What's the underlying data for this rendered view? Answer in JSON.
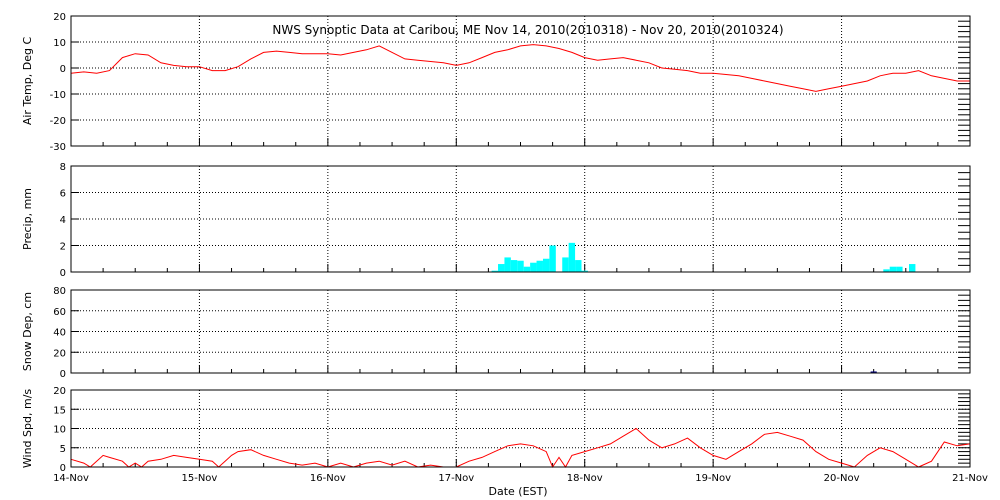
{
  "title": "NWS Synoptic Data at Caribou, ME    Nov 14, 2010(2010318) - Nov 20, 2010(2010324)",
  "x_axis": {
    "label": "Date (EST)",
    "ticks": [
      "14-Nov",
      "15-Nov",
      "16-Nov",
      "17-Nov",
      "18-Nov",
      "19-Nov",
      "20-Nov",
      "21-Nov"
    ]
  },
  "colors": {
    "temperature": "#ff0000",
    "precip": "#00ffff",
    "snow": "#000080",
    "wind": "#ff0000"
  },
  "chart_data": [
    {
      "type": "line",
      "ylabel": "Air Temp, Deg C",
      "ylim": [
        -30,
        20
      ],
      "yticks": [
        -30,
        -20,
        -10,
        0,
        10,
        20
      ],
      "x_unit": "days since 14-Nov 00:00 EST",
      "x": [
        0,
        0.1,
        0.2,
        0.3,
        0.4,
        0.5,
        0.6,
        0.7,
        0.8,
        0.9,
        1.0,
        1.1,
        1.2,
        1.3,
        1.4,
        1.5,
        1.6,
        1.7,
        1.8,
        1.9,
        2.0,
        2.1,
        2.2,
        2.3,
        2.4,
        2.5,
        2.6,
        2.7,
        2.8,
        2.9,
        3.0,
        3.1,
        3.2,
        3.3,
        3.4,
        3.5,
        3.6,
        3.7,
        3.8,
        3.9,
        4.0,
        4.1,
        4.2,
        4.3,
        4.4,
        4.5,
        4.6,
        4.7,
        4.8,
        4.9,
        5.0,
        5.1,
        5.2,
        5.3,
        5.4,
        5.5,
        5.6,
        5.7,
        5.8,
        5.9,
        6.0,
        6.1,
        6.2,
        6.3,
        6.4,
        6.5,
        6.6,
        6.7,
        6.8,
        6.9,
        7.0
      ],
      "values": [
        -2,
        -1.5,
        -2,
        -1,
        4,
        5.5,
        5,
        2,
        1,
        0.5,
        0.5,
        -1,
        -1,
        0.5,
        3.5,
        6,
        6.5,
        6,
        5.5,
        5.5,
        5.5,
        5,
        6,
        7,
        8.5,
        6,
        3.5,
        3,
        2.5,
        2,
        1,
        2,
        4,
        6,
        7,
        8.5,
        9,
        8.5,
        7.5,
        6,
        4,
        3,
        3.5,
        4,
        3,
        2,
        0,
        -0.5,
        -1,
        -2,
        -2,
        -2.5,
        -3,
        -4,
        -5,
        -6,
        -7,
        -8,
        -9,
        -8,
        -7,
        -6,
        -5,
        -3,
        -2,
        -2,
        -1,
        -3,
        -4,
        -5,
        -5
      ]
    },
    {
      "type": "bar",
      "ylabel": "Precip, mm",
      "ylim": [
        0,
        8
      ],
      "yticks": [
        0,
        2,
        4,
        6,
        8
      ],
      "x_unit": "days since 14-Nov 00:00 EST",
      "x": [
        3.3,
        3.35,
        3.4,
        3.45,
        3.5,
        3.55,
        3.6,
        3.65,
        3.7,
        3.75,
        3.85,
        3.9,
        3.95,
        4.0,
        6.35,
        6.4,
        6.45,
        6.55
      ],
      "values": [
        0.1,
        0.6,
        1.1,
        0.9,
        0.85,
        0.4,
        0.7,
        0.85,
        1.0,
        2.0,
        1.1,
        2.2,
        0.9,
        0.1,
        0.2,
        0.4,
        0.4,
        0.6
      ],
      "bar_width_days": 0.05
    },
    {
      "type": "bar",
      "ylabel": "Snow Dep, cm",
      "ylim": [
        0,
        80
      ],
      "yticks": [
        0,
        20,
        40,
        60,
        80
      ],
      "x_unit": "days since 14-Nov 00:00 EST",
      "x": [
        6.25
      ],
      "values": [
        1
      ],
      "bar_width_days": 0.04
    },
    {
      "type": "line",
      "ylabel": "Wind Spd, m/s",
      "ylim": [
        0,
        20
      ],
      "yticks": [
        0,
        5,
        10,
        15,
        20
      ],
      "x_unit": "days since 14-Nov 00:00 EST",
      "x": [
        0,
        0.1,
        0.15,
        0.25,
        0.3,
        0.4,
        0.45,
        0.5,
        0.55,
        0.6,
        0.7,
        0.8,
        0.9,
        1.0,
        1.1,
        1.15,
        1.2,
        1.25,
        1.3,
        1.4,
        1.5,
        1.6,
        1.7,
        1.8,
        1.9,
        2.0,
        2.1,
        2.2,
        2.3,
        2.4,
        2.5,
        2.6,
        2.7,
        2.8,
        2.9,
        3.0,
        3.1,
        3.2,
        3.3,
        3.4,
        3.5,
        3.6,
        3.7,
        3.75,
        3.8,
        3.85,
        3.9,
        4.0,
        4.1,
        4.2,
        4.3,
        4.4,
        4.5,
        4.6,
        4.7,
        4.8,
        4.9,
        5.0,
        5.1,
        5.2,
        5.3,
        5.4,
        5.5,
        5.6,
        5.7,
        5.8,
        5.9,
        6.0,
        6.1,
        6.2,
        6.3,
        6.4,
        6.5,
        6.6,
        6.7,
        6.8,
        6.9,
        7.0
      ],
      "values": [
        2,
        1,
        0,
        3,
        2.5,
        1.5,
        0,
        1,
        0,
        1.5,
        2,
        3,
        2.5,
        2,
        1.5,
        0,
        1.5,
        3,
        4,
        4.5,
        3,
        2,
        1,
        0.5,
        1,
        0,
        1,
        0,
        1,
        1.5,
        0.5,
        1.5,
        0,
        0.5,
        0,
        0,
        1.5,
        2.5,
        4,
        5.5,
        6,
        5.5,
        4,
        0,
        2.5,
        0,
        3,
        4,
        5,
        6,
        8,
        10,
        7,
        5,
        6,
        7.5,
        5,
        3,
        2,
        4,
        6,
        8.5,
        9,
        8,
        7,
        4,
        2,
        1,
        0,
        3,
        5,
        4,
        2,
        0,
        1.5,
        6.5,
        5.5,
        6
      ]
    }
  ]
}
